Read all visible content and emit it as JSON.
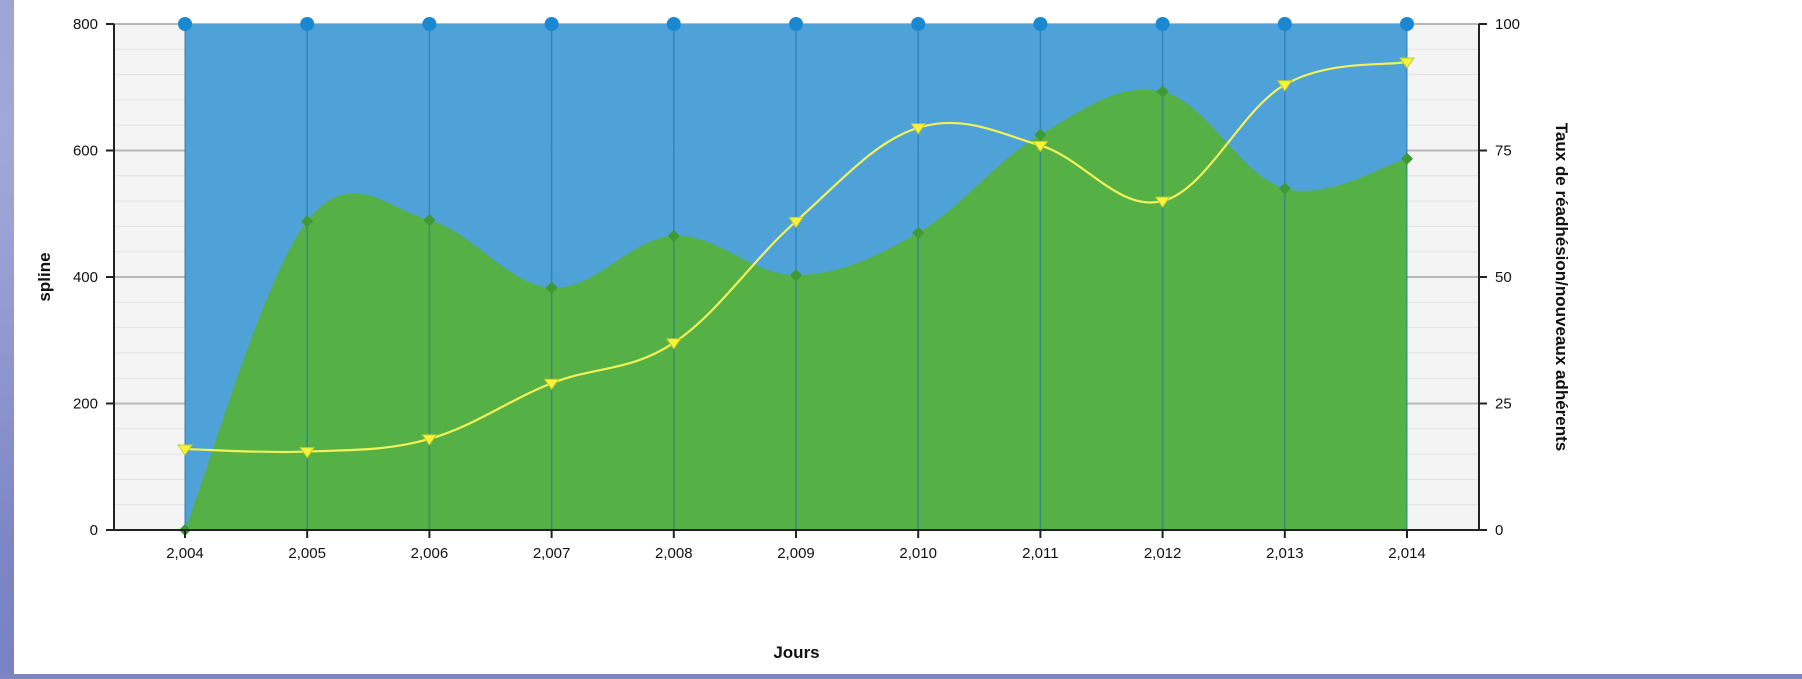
{
  "chart_data": {
    "type": "area",
    "x": [
      2004,
      2005,
      2006,
      2007,
      2008,
      2009,
      2010,
      2011,
      2012,
      2013,
      2014
    ],
    "x_tick_labels": [
      "2,004",
      "2,005",
      "2,006",
      "2,007",
      "2,008",
      "2,009",
      "2,010",
      "2,011",
      "2,012",
      "2,013",
      "2,014"
    ],
    "xlabel": "Jours",
    "ylabel": "spline",
    "ylabel_right": "Taux de réadhésion/nouveaux adhérents",
    "ylim": [
      0,
      800
    ],
    "ylim_right": [
      0,
      100
    ],
    "y_ticks": [
      "0",
      "200",
      "400",
      "600",
      "800"
    ],
    "y_ticks_right": [
      "0",
      "25",
      "50",
      "75",
      "100"
    ],
    "grid": true,
    "series": [
      {
        "type": "area",
        "axis": "left",
        "color": "#4aa0d6",
        "marker_color": "#1a88d1",
        "marker": "circle",
        "values": [
          800,
          800,
          800,
          800,
          800,
          800,
          800,
          800,
          800,
          800,
          800
        ]
      },
      {
        "type": "area-spline",
        "axis": "left",
        "color": "#55b045",
        "marker_color": "#3f9a34",
        "marker": "diamond",
        "values": [
          0,
          488,
          490,
          383,
          465,
          403,
          470,
          625,
          693,
          540,
          587
        ]
      },
      {
        "type": "spline",
        "axis": "right",
        "color": "#f2f25a",
        "marker_color": "#f5f53c",
        "marker": "triangle-down",
        "values": [
          16,
          15.5,
          18,
          29,
          37,
          61,
          79.5,
          76,
          65,
          88,
          92.5
        ]
      }
    ]
  }
}
